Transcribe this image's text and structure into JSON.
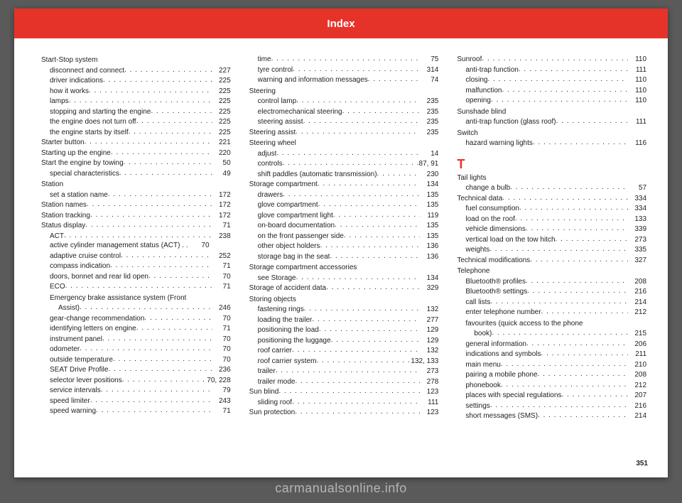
{
  "header": {
    "title": "Index"
  },
  "pageNumber": "351",
  "watermark": "carmanualsonline.info",
  "colors": {
    "accent": "#e63329",
    "pageBg": "#ffffff",
    "bodyText": "#222222",
    "outerBg": "#5a5a5a",
    "watermark": "rgba(255,255,255,0.55)"
  },
  "columns": [
    [
      {
        "type": "heading",
        "label": "Start-Stop system"
      },
      {
        "type": "entry",
        "indent": 1,
        "label": "disconnect and connect",
        "page": "227"
      },
      {
        "type": "entry",
        "indent": 1,
        "label": "driver indications",
        "page": "225"
      },
      {
        "type": "entry",
        "indent": 1,
        "label": "how it works",
        "page": "225"
      },
      {
        "type": "entry",
        "indent": 1,
        "label": "lamps",
        "page": "225"
      },
      {
        "type": "entry",
        "indent": 1,
        "label": "stopping and starting the engine",
        "page": "225"
      },
      {
        "type": "entry",
        "indent": 1,
        "label": "the engine does not turn off",
        "page": "225"
      },
      {
        "type": "entry",
        "indent": 1,
        "label": "the engine starts by itself",
        "page": "225"
      },
      {
        "type": "entry",
        "indent": 0,
        "label": "Starter button",
        "page": "221"
      },
      {
        "type": "entry",
        "indent": 0,
        "label": "Starting up the engine",
        "page": "220"
      },
      {
        "type": "entry",
        "indent": 0,
        "label": "Start the engine by towing",
        "page": "50"
      },
      {
        "type": "entry",
        "indent": 1,
        "label": "special characteristics",
        "page": "49"
      },
      {
        "type": "heading",
        "label": "Station"
      },
      {
        "type": "entry",
        "indent": 1,
        "label": "set a station name",
        "page": "172"
      },
      {
        "type": "entry",
        "indent": 0,
        "label": "Station names",
        "page": "172"
      },
      {
        "type": "entry",
        "indent": 0,
        "label": "Station tracking",
        "page": "172"
      },
      {
        "type": "entry",
        "indent": 0,
        "label": "Status display",
        "page": "71"
      },
      {
        "type": "entry",
        "indent": 1,
        "label": "ACT",
        "page": "238"
      },
      {
        "type": "entry",
        "indent": 1,
        "label": "active cylinder management status (ACT) . .",
        "page": "70",
        "noDots": true
      },
      {
        "type": "entry",
        "indent": 1,
        "label": "adaptive cruise control",
        "page": "252"
      },
      {
        "type": "entry",
        "indent": 1,
        "label": "compass indication",
        "page": "71"
      },
      {
        "type": "entry",
        "indent": 1,
        "label": "doors, bonnet and rear lid open",
        "page": "70"
      },
      {
        "type": "entry",
        "indent": 1,
        "label": "ECO",
        "page": "71"
      },
      {
        "type": "heading-indent",
        "label": "Emergency brake assistance system (Front"
      },
      {
        "type": "entry",
        "indent": 2,
        "label": "Assist)",
        "page": "246"
      },
      {
        "type": "entry",
        "indent": 1,
        "label": "gear-change recommendation",
        "page": "70"
      },
      {
        "type": "entry",
        "indent": 1,
        "label": "identifying letters on engine",
        "page": "71"
      },
      {
        "type": "entry",
        "indent": 1,
        "label": "instrument panel",
        "page": "70"
      },
      {
        "type": "entry",
        "indent": 1,
        "label": "odometer",
        "page": "70"
      },
      {
        "type": "entry",
        "indent": 1,
        "label": "outside temperature",
        "page": "70"
      },
      {
        "type": "entry",
        "indent": 1,
        "label": "SEAT Drive Profile",
        "page": "236"
      },
      {
        "type": "entry",
        "indent": 1,
        "label": "selector lever positions",
        "page": "70, 228"
      },
      {
        "type": "entry",
        "indent": 1,
        "label": "service intervals",
        "page": "79"
      },
      {
        "type": "entry",
        "indent": 1,
        "label": "speed limiter",
        "page": "243"
      },
      {
        "type": "entry",
        "indent": 1,
        "label": "speed warning",
        "page": "71"
      }
    ],
    [
      {
        "type": "entry",
        "indent": 1,
        "label": "time",
        "page": "75"
      },
      {
        "type": "entry",
        "indent": 1,
        "label": "tyre control",
        "page": "314"
      },
      {
        "type": "entry",
        "indent": 1,
        "label": "warning and information messages",
        "page": "74"
      },
      {
        "type": "heading",
        "label": "Steering"
      },
      {
        "type": "entry",
        "indent": 1,
        "label": "control lamp",
        "page": "235"
      },
      {
        "type": "entry",
        "indent": 1,
        "label": "electromechanical steering",
        "page": "235"
      },
      {
        "type": "entry",
        "indent": 1,
        "label": "steering assist",
        "page": "235"
      },
      {
        "type": "entry",
        "indent": 0,
        "label": "Steering assist",
        "page": "235"
      },
      {
        "type": "heading",
        "label": "Steering wheel"
      },
      {
        "type": "entry",
        "indent": 1,
        "label": "adjust",
        "page": "14"
      },
      {
        "type": "entry",
        "indent": 1,
        "label": "controls",
        "page": "87, 91"
      },
      {
        "type": "entry",
        "indent": 1,
        "label": "shift paddles (automatic transmission)",
        "page": "230"
      },
      {
        "type": "entry",
        "indent": 0,
        "label": "Storage compartment",
        "page": "134"
      },
      {
        "type": "entry",
        "indent": 1,
        "label": "drawers",
        "page": "135"
      },
      {
        "type": "entry",
        "indent": 1,
        "label": "glove compartment",
        "page": "135"
      },
      {
        "type": "entry",
        "indent": 1,
        "label": "glove compartment light",
        "page": "119"
      },
      {
        "type": "entry",
        "indent": 1,
        "label": "on-board documentation",
        "page": "135"
      },
      {
        "type": "entry",
        "indent": 1,
        "label": "on the front passenger side",
        "page": "135"
      },
      {
        "type": "entry",
        "indent": 1,
        "label": "other object holders",
        "page": "136"
      },
      {
        "type": "entry",
        "indent": 1,
        "label": "storage bag in the seat",
        "page": "136"
      },
      {
        "type": "heading",
        "label": "Storage compartment accessories"
      },
      {
        "type": "entry",
        "indent": 1,
        "label": "see Storage",
        "page": "134"
      },
      {
        "type": "entry",
        "indent": 0,
        "label": "Storage of accident data",
        "page": "329"
      },
      {
        "type": "heading",
        "label": "Storing objects"
      },
      {
        "type": "entry",
        "indent": 1,
        "label": "fastening rings",
        "page": "132"
      },
      {
        "type": "entry",
        "indent": 1,
        "label": "loading the trailer",
        "page": "277"
      },
      {
        "type": "entry",
        "indent": 1,
        "label": "positioning the load",
        "page": "129"
      },
      {
        "type": "entry",
        "indent": 1,
        "label": "positioning the luggage",
        "page": "129"
      },
      {
        "type": "entry",
        "indent": 1,
        "label": "roof carrier",
        "page": "132"
      },
      {
        "type": "entry",
        "indent": 1,
        "label": "roof carrier system",
        "page": "132, 133"
      },
      {
        "type": "entry",
        "indent": 1,
        "label": "trailer",
        "page": "273"
      },
      {
        "type": "entry",
        "indent": 1,
        "label": "trailer mode",
        "page": "278"
      },
      {
        "type": "entry",
        "indent": 0,
        "label": "Sun blind",
        "page": "123"
      },
      {
        "type": "entry",
        "indent": 1,
        "label": "sliding roof",
        "page": "111"
      },
      {
        "type": "entry",
        "indent": 0,
        "label": "Sun protection",
        "page": "123"
      }
    ],
    [
      {
        "type": "entry",
        "indent": 0,
        "label": "Sunroof",
        "page": "110"
      },
      {
        "type": "entry",
        "indent": 1,
        "label": "anti-trap function",
        "page": "111"
      },
      {
        "type": "entry",
        "indent": 1,
        "label": "closing",
        "page": "110"
      },
      {
        "type": "entry",
        "indent": 1,
        "label": "malfunction",
        "page": "110"
      },
      {
        "type": "entry",
        "indent": 1,
        "label": "opening",
        "page": "110"
      },
      {
        "type": "heading",
        "label": "Sunshade blind"
      },
      {
        "type": "entry",
        "indent": 1,
        "label": "anti-trap function (glass roof)",
        "page": "111"
      },
      {
        "type": "heading",
        "label": "Switch"
      },
      {
        "type": "entry",
        "indent": 1,
        "label": "hazard warning lights",
        "page": "116"
      },
      {
        "type": "section",
        "letter": "T"
      },
      {
        "type": "heading",
        "label": "Tail lights"
      },
      {
        "type": "entry",
        "indent": 1,
        "label": "change a bulb",
        "page": "57"
      },
      {
        "type": "entry",
        "indent": 0,
        "label": "Technical data",
        "page": "334"
      },
      {
        "type": "entry",
        "indent": 1,
        "label": "fuel consumption",
        "page": "334"
      },
      {
        "type": "entry",
        "indent": 1,
        "label": "load on the roof",
        "page": "133"
      },
      {
        "type": "entry",
        "indent": 1,
        "label": "vehicle dimensions",
        "page": "339"
      },
      {
        "type": "entry",
        "indent": 1,
        "label": "vertical load on the tow hitch",
        "page": "273"
      },
      {
        "type": "entry",
        "indent": 1,
        "label": "weights",
        "page": "335"
      },
      {
        "type": "entry",
        "indent": 0,
        "label": "Technical modifications",
        "page": "327"
      },
      {
        "type": "heading",
        "label": "Telephone"
      },
      {
        "type": "entry",
        "indent": 1,
        "label": "Bluetooth® profiles",
        "page": "208"
      },
      {
        "type": "entry",
        "indent": 1,
        "label": "Bluetooth® settings",
        "page": "216"
      },
      {
        "type": "entry",
        "indent": 1,
        "label": "call lists",
        "page": "214"
      },
      {
        "type": "entry",
        "indent": 1,
        "label": "enter telephone number",
        "page": "212"
      },
      {
        "type": "heading-indent",
        "label": "favourites (quick access to the phone"
      },
      {
        "type": "entry",
        "indent": 2,
        "label": "book)",
        "page": "215"
      },
      {
        "type": "entry",
        "indent": 1,
        "label": "general information",
        "page": "206"
      },
      {
        "type": "entry",
        "indent": 1,
        "label": "indications and symbols",
        "page": "211"
      },
      {
        "type": "entry",
        "indent": 1,
        "label": "main menu",
        "page": "210"
      },
      {
        "type": "entry",
        "indent": 1,
        "label": "pairing a mobile phone",
        "page": "208"
      },
      {
        "type": "entry",
        "indent": 1,
        "label": "phonebook",
        "page": "212"
      },
      {
        "type": "entry",
        "indent": 1,
        "label": "places with special regulations",
        "page": "207"
      },
      {
        "type": "entry",
        "indent": 1,
        "label": "settings",
        "page": "216"
      },
      {
        "type": "entry",
        "indent": 1,
        "label": "short messages (SMS)",
        "page": "214"
      }
    ]
  ]
}
